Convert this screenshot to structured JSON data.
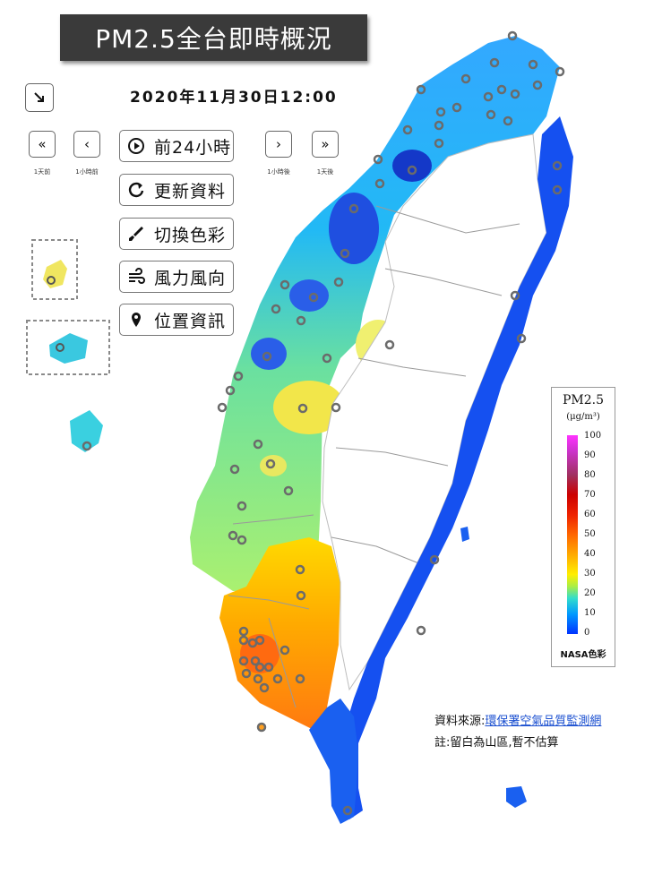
{
  "title": "PM2.5全台即時概況",
  "datetime": "2020年11月30日12:00",
  "nav": {
    "back_day_caption": "1天前",
    "back_hour_caption": "1小時前",
    "forward_hour_caption": "1小時後",
    "forward_day_caption": "1天後"
  },
  "menu": {
    "play_label": "前24小時",
    "refresh_label": "更新資料",
    "color_label": "切換色彩",
    "wind_label": "風力風向",
    "location_label": "位置資訊"
  },
  "legend": {
    "title": "PM2.5",
    "unit": "(μg/m³)",
    "ticks": [
      "100",
      "90",
      "80",
      "70",
      "60",
      "50",
      "40",
      "30",
      "20",
      "10",
      "0"
    ],
    "brand": "NASA色彩",
    "colors": {
      "top": "#ff33ff",
      "mid": "#ff6600",
      "low": "#ffee00",
      "clean": "#0033ff"
    }
  },
  "source": {
    "prefix": "資料來源:",
    "link": "環保署空氣品質監測網"
  },
  "note": "註:留白為山區,暫不估算",
  "icons": {
    "collapse": "collapse-arrow-icon",
    "play": "play-circle-icon",
    "refresh": "refresh-icon",
    "color": "paint-brush-icon",
    "wind": "wind-icon",
    "location": "map-pin-icon"
  }
}
